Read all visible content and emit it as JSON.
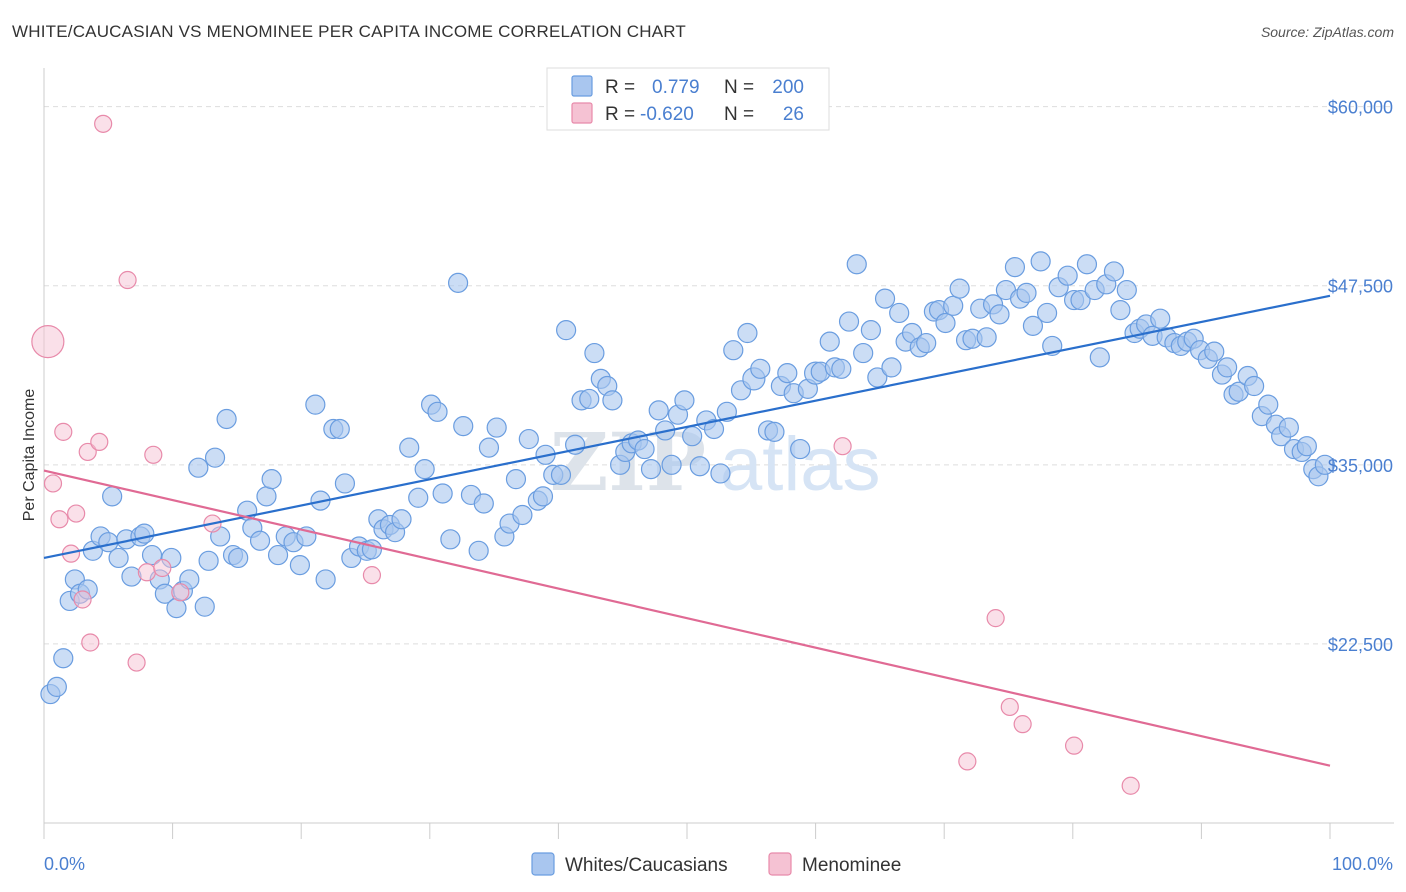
{
  "title": "WHITE/CAUCASIAN VS MENOMINEE PER CAPITA INCOME CORRELATION CHART",
  "source": "Source: ZipAtlas.com",
  "watermark": {
    "zip": "ZIP",
    "atlas": "atlas"
  },
  "colors": {
    "blue": "#6a9de0",
    "blue_fill": "#a9c6ef",
    "blue_line": "#2a6fcc",
    "pink": "#e88aaa",
    "pink_fill": "#f5c2d3",
    "pink_line": "#e06a94",
    "axis_text": "#4a7fd0",
    "grid": "#dddddd"
  },
  "legend": {
    "rows": [
      {
        "r_label": "R = ",
        "r_value": "0.779",
        "n_label": "N = ",
        "n_value": "200"
      },
      {
        "r_label": "R = ",
        "r_value": "-0.620",
        "n_label": "N = ",
        "n_value": "26"
      }
    ]
  },
  "bottom_legend": [
    "Whites/Caucasians",
    "Menominee"
  ],
  "chart_data": {
    "type": "scatter",
    "title": "WHITE/CAUCASIAN VS MENOMINEE PER CAPITA INCOME CORRELATION CHART",
    "xlabel": "",
    "ylabel": "Per Capita Income",
    "x_range": [
      0,
      100
    ],
    "y_range": [
      10000,
      62000
    ],
    "x_ticks_labels": [
      "0.0%",
      "100.0%"
    ],
    "y_ticks": [
      22500,
      35000,
      47500,
      60000
    ],
    "y_tick_labels": [
      "$22,500",
      "$35,000",
      "$47,500",
      "$60,000"
    ],
    "grid": true,
    "legend_position": "top-center",
    "series": [
      {
        "name": "Whites/Caucasians",
        "r": 0.779,
        "n": 200,
        "trend": {
          "x": [
            0,
            100
          ],
          "y": [
            28500,
            46800
          ]
        },
        "points": [
          [
            0.5,
            19000
          ],
          [
            1,
            19500
          ],
          [
            1.5,
            21500
          ],
          [
            2,
            25500
          ],
          [
            2.4,
            27000
          ],
          [
            2.8,
            26000
          ],
          [
            3.4,
            26300
          ],
          [
            3.8,
            29000
          ],
          [
            4.4,
            30000
          ],
          [
            5,
            29600
          ],
          [
            5.3,
            32800
          ],
          [
            5.8,
            28500
          ],
          [
            6.4,
            29800
          ],
          [
            6.8,
            27200
          ],
          [
            7.5,
            30000
          ],
          [
            7.8,
            30200
          ],
          [
            8.4,
            28700
          ],
          [
            9,
            27000
          ],
          [
            9.4,
            26000
          ],
          [
            9.9,
            28500
          ],
          [
            10.3,
            25000
          ],
          [
            10.8,
            26200
          ],
          [
            11.3,
            27000
          ],
          [
            12,
            34800
          ],
          [
            12.5,
            25100
          ],
          [
            12.8,
            28300
          ],
          [
            13.3,
            35500
          ],
          [
            13.7,
            30000
          ],
          [
            14.2,
            38200
          ],
          [
            14.7,
            28700
          ],
          [
            15.1,
            28500
          ],
          [
            15.8,
            31800
          ],
          [
            16.2,
            30600
          ],
          [
            16.8,
            29700
          ],
          [
            17.3,
            32800
          ],
          [
            17.7,
            34000
          ],
          [
            18.2,
            28700
          ],
          [
            18.8,
            30000
          ],
          [
            19.4,
            29600
          ],
          [
            19.9,
            28000
          ],
          [
            20.4,
            30000
          ],
          [
            21.1,
            39200
          ],
          [
            21.5,
            32500
          ],
          [
            21.9,
            27000
          ],
          [
            22.5,
            37500
          ],
          [
            23,
            37500
          ],
          [
            23.4,
            33700
          ],
          [
            23.9,
            28500
          ],
          [
            24.5,
            29300
          ],
          [
            25.1,
            29000
          ],
          [
            25.5,
            29100
          ],
          [
            26,
            31200
          ],
          [
            26.4,
            30500
          ],
          [
            26.9,
            30800
          ],
          [
            27.3,
            30300
          ],
          [
            27.8,
            31200
          ],
          [
            28.4,
            36200
          ],
          [
            29.1,
            32700
          ],
          [
            29.6,
            34700
          ],
          [
            30.1,
            39200
          ],
          [
            30.6,
            38700
          ],
          [
            31,
            33000
          ],
          [
            31.6,
            29800
          ],
          [
            32.2,
            47700
          ],
          [
            32.6,
            37700
          ],
          [
            33.2,
            32900
          ],
          [
            33.8,
            29000
          ],
          [
            34.2,
            32300
          ],
          [
            34.6,
            36200
          ],
          [
            35.2,
            37600
          ],
          [
            35.8,
            30000
          ],
          [
            36.2,
            30900
          ],
          [
            36.7,
            34000
          ],
          [
            37.2,
            31500
          ],
          [
            37.7,
            36800
          ],
          [
            38.4,
            32500
          ],
          [
            38.8,
            32800
          ],
          [
            39,
            35700
          ],
          [
            39.6,
            34300
          ],
          [
            40.2,
            34300
          ],
          [
            40.6,
            44400
          ],
          [
            41.3,
            36400
          ],
          [
            41.8,
            39500
          ],
          [
            42.4,
            39600
          ],
          [
            42.8,
            42800
          ],
          [
            43.3,
            41000
          ],
          [
            43.8,
            40500
          ],
          [
            44.2,
            39500
          ],
          [
            44.8,
            35000
          ],
          [
            45.2,
            35900
          ],
          [
            45.7,
            36500
          ],
          [
            46.2,
            36700
          ],
          [
            46.7,
            36100
          ],
          [
            47.2,
            34700
          ],
          [
            47.8,
            38800
          ],
          [
            48.3,
            37400
          ],
          [
            48.8,
            35000
          ],
          [
            49.3,
            38500
          ],
          [
            49.8,
            39500
          ],
          [
            50.4,
            37000
          ],
          [
            51,
            34900
          ],
          [
            51.5,
            38100
          ],
          [
            52.1,
            37500
          ],
          [
            52.6,
            34400
          ],
          [
            53.1,
            38700
          ],
          [
            53.6,
            43000
          ],
          [
            54.2,
            40200
          ],
          [
            54.7,
            44200
          ],
          [
            55.2,
            41000
          ],
          [
            55.7,
            41700
          ],
          [
            56.3,
            37400
          ],
          [
            56.8,
            37300
          ],
          [
            57.3,
            40500
          ],
          [
            57.8,
            41400
          ],
          [
            58.3,
            40000
          ],
          [
            58.8,
            36100
          ],
          [
            59.4,
            40300
          ],
          [
            60,
            41400
          ],
          [
            60.4,
            41500
          ],
          [
            61.1,
            43600
          ],
          [
            61.5,
            41800
          ],
          [
            62,
            41700
          ],
          [
            62.6,
            45000
          ],
          [
            63.2,
            49000
          ],
          [
            63.7,
            42800
          ],
          [
            64.3,
            44400
          ],
          [
            64.8,
            41100
          ],
          [
            65.4,
            46600
          ],
          [
            65.9,
            41800
          ],
          [
            66.5,
            45600
          ],
          [
            67,
            43600
          ],
          [
            67.5,
            44200
          ],
          [
            68.1,
            43200
          ],
          [
            68.6,
            43500
          ],
          [
            69.2,
            45700
          ],
          [
            69.6,
            45800
          ],
          [
            70.1,
            44900
          ],
          [
            70.7,
            46100
          ],
          [
            71.2,
            47300
          ],
          [
            71.7,
            43700
          ],
          [
            72.2,
            43800
          ],
          [
            72.8,
            45900
          ],
          [
            73.3,
            43900
          ],
          [
            73.8,
            46200
          ],
          [
            74.3,
            45500
          ],
          [
            74.8,
            47200
          ],
          [
            75.5,
            48800
          ],
          [
            75.9,
            46600
          ],
          [
            76.4,
            47000
          ],
          [
            76.9,
            44700
          ],
          [
            77.5,
            49200
          ],
          [
            78,
            45600
          ],
          [
            78.4,
            43300
          ],
          [
            78.9,
            47400
          ],
          [
            79.6,
            48200
          ],
          [
            80.1,
            46500
          ],
          [
            80.6,
            46500
          ],
          [
            81.1,
            49000
          ],
          [
            81.7,
            47200
          ],
          [
            82.1,
            42500
          ],
          [
            82.6,
            47600
          ],
          [
            83.2,
            48500
          ],
          [
            83.7,
            45800
          ],
          [
            84.2,
            47200
          ],
          [
            84.8,
            44200
          ],
          [
            85.2,
            44500
          ],
          [
            85.7,
            44800
          ],
          [
            86.2,
            44000
          ],
          [
            86.8,
            45200
          ],
          [
            87.3,
            43900
          ],
          [
            87.9,
            43500
          ],
          [
            88.4,
            43300
          ],
          [
            88.9,
            43600
          ],
          [
            89.4,
            43800
          ],
          [
            89.9,
            43000
          ],
          [
            90.5,
            42400
          ],
          [
            91,
            42900
          ],
          [
            91.6,
            41300
          ],
          [
            92,
            41800
          ],
          [
            92.5,
            39900
          ],
          [
            92.9,
            40100
          ],
          [
            93.6,
            41200
          ],
          [
            94.1,
            40500
          ],
          [
            94.7,
            38400
          ],
          [
            95.2,
            39200
          ],
          [
            95.8,
            37800
          ],
          [
            96.2,
            37000
          ],
          [
            96.8,
            37600
          ],
          [
            97.2,
            36100
          ],
          [
            97.8,
            35900
          ],
          [
            98.2,
            36300
          ],
          [
            98.7,
            34700
          ],
          [
            99.1,
            34200
          ],
          [
            99.6,
            35000
          ]
        ]
      },
      {
        "name": "Menominee",
        "r": -0.62,
        "n": 26,
        "trend": {
          "x": [
            0,
            100
          ],
          "y": [
            34600,
            14000
          ]
        },
        "points": [
          [
            0.3,
            43600
          ],
          [
            0.7,
            33700
          ],
          [
            1.2,
            31200
          ],
          [
            1.5,
            37300
          ],
          [
            2.1,
            28800
          ],
          [
            2.5,
            31600
          ],
          [
            3,
            25600
          ],
          [
            3.4,
            35900
          ],
          [
            3.6,
            22600
          ],
          [
            4.3,
            36600
          ],
          [
            4.6,
            58800
          ],
          [
            6.5,
            47900
          ],
          [
            7.2,
            21200
          ],
          [
            8,
            27500
          ],
          [
            8.5,
            35700
          ],
          [
            9.2,
            27800
          ],
          [
            10.6,
            26100
          ],
          [
            13.1,
            30900
          ],
          [
            25.5,
            27300
          ],
          [
            62.1,
            36300
          ],
          [
            71.8,
            14300
          ],
          [
            74,
            24300
          ],
          [
            75.1,
            18100
          ],
          [
            76.1,
            16900
          ],
          [
            80.1,
            15400
          ],
          [
            84.5,
            12600
          ]
        ]
      }
    ]
  }
}
